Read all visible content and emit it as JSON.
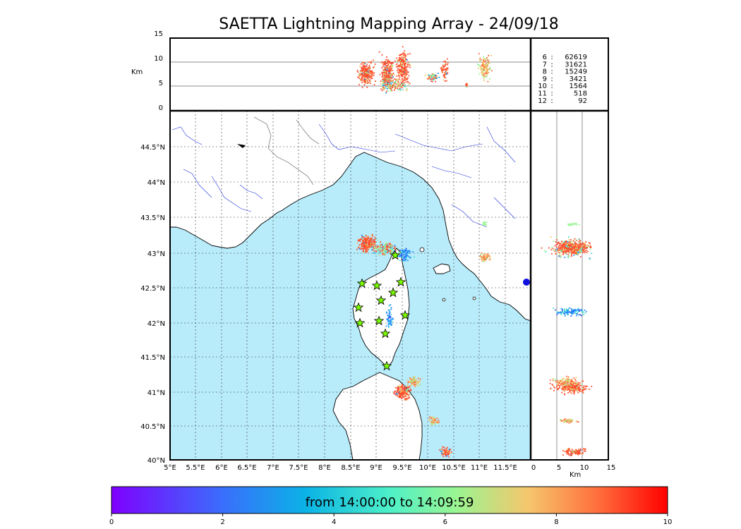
{
  "title": "SAETTA Lightning Mapping Array - 24/09/18",
  "top_panel": {
    "y_unit": "Km",
    "y_ticks": [
      "15",
      "10",
      "5",
      "0"
    ]
  },
  "side_panel": {
    "x_unit": "Km",
    "x_ticks": [
      "0",
      "5",
      "10",
      "15"
    ]
  },
  "map": {
    "lon_ticks": [
      "5°E",
      "5.5°E",
      "6°E",
      "6.5°E",
      "7°E",
      "7.5°E",
      "8°E",
      "8.5°E",
      "9°E",
      "9.5°E",
      "10°E",
      "10.5°E",
      "11°E",
      "11.5°E"
    ],
    "lat_ticks": [
      "44.5°N",
      "44°N",
      "43.5°N",
      "43°N",
      "42.5°N",
      "42°N",
      "41.5°N",
      "41°N",
      "40.5°N",
      "40°N"
    ],
    "sea_color": "#b8ecfb",
    "star_color": "#7cfc00"
  },
  "station_counts": [
    {
      "n": "6",
      "sep": ":",
      "count": "62619",
      "color": "#000000"
    },
    {
      "n": "7",
      "sep": ":",
      "count": "31621",
      "color": "#e31a1c"
    },
    {
      "n": "8",
      "sep": ":",
      "count": "15249",
      "color": "#000000"
    },
    {
      "n": "9",
      "sep": ":",
      "count": "3421",
      "color": "#000000"
    },
    {
      "n": "10",
      "sep": ":",
      "count": "1564",
      "color": "#000000"
    },
    {
      "n": "11",
      "sep": ":",
      "count": "518",
      "color": "#000000"
    },
    {
      "n": "12",
      "sep": ":",
      "count": "92",
      "color": "#000000"
    }
  ],
  "colorbar": {
    "text": "from 14:00:00 to 14:09:59",
    "ticks": [
      "0",
      "2",
      "4",
      "6",
      "8",
      "10"
    ]
  }
}
